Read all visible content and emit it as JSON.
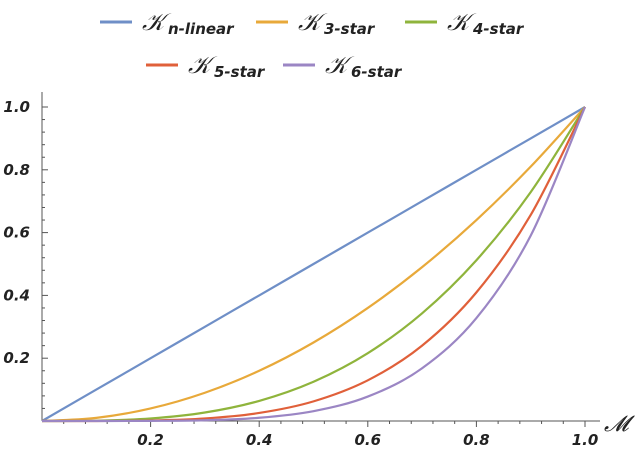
{
  "chart_data": {
    "type": "line",
    "title": "",
    "xlabel": "𝓜",
    "ylabel": "",
    "xlim": [
      0,
      1
    ],
    "ylim": [
      0,
      1
    ],
    "x_ticks": [
      "0.2",
      "0.4",
      "0.6",
      "0.8",
      "1.0"
    ],
    "y_ticks": [
      "0.2",
      "0.4",
      "0.6",
      "0.8",
      "1.0"
    ],
    "legend_position": "top",
    "grid": false,
    "x": [
      0,
      0.1,
      0.2,
      0.3,
      0.4,
      0.5,
      0.6,
      0.7,
      0.8,
      0.9,
      1.0
    ],
    "series": [
      {
        "name": "n-linear",
        "symbol": "𝒦",
        "color": "#6f8fc7",
        "values": [
          0,
          0.1,
          0.2,
          0.3,
          0.4,
          0.5,
          0.6,
          0.7,
          0.8,
          0.9,
          1.0
        ]
      },
      {
        "name": "3-star",
        "symbol": "𝒦",
        "color": "#e8a93a",
        "values": [
          0,
          0.01,
          0.04,
          0.09,
          0.16,
          0.25,
          0.36,
          0.49,
          0.64,
          0.81,
          1.0
        ]
      },
      {
        "name": "4-star",
        "symbol": "𝒦",
        "color": "#8fb43c",
        "values": [
          0,
          0.001,
          0.008,
          0.027,
          0.064,
          0.125,
          0.216,
          0.343,
          0.512,
          0.729,
          1.0
        ]
      },
      {
        "name": "5-star",
        "symbol": "𝒦",
        "color": "#e0603a",
        "values": [
          0,
          0.0001,
          0.0016,
          0.0081,
          0.0256,
          0.0625,
          0.1296,
          0.2401,
          0.4096,
          0.6561,
          1.0
        ]
      },
      {
        "name": "6-star",
        "symbol": "𝒦",
        "color": "#9b86c4",
        "values": [
          0,
          1e-05,
          0.00032,
          0.00243,
          0.01024,
          0.03125,
          0.07776,
          0.16807,
          0.32768,
          0.59049,
          1.0
        ]
      }
    ]
  }
}
